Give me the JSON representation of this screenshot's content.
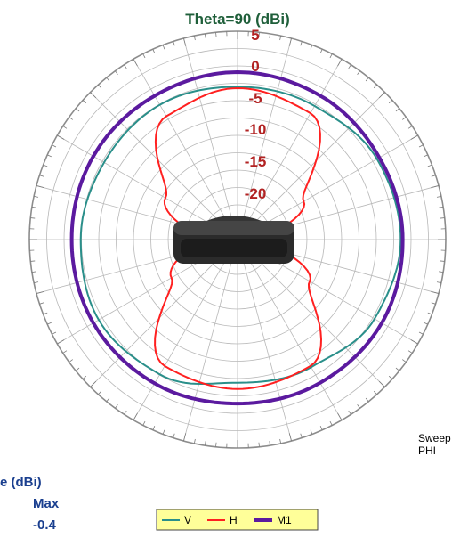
{
  "chart_data": {
    "type": "polar",
    "title": "Theta=90 (dBi)",
    "radial_ticks": [
      "5",
      "0",
      "-5",
      "-10",
      "-15",
      "-20"
    ],
    "rlim": [
      -25,
      5
    ],
    "grid": true,
    "sweep_label_line1": "Sweep",
    "sweep_label_line2": "PHI",
    "angle_step_deg": 15,
    "legend_position": "bottom-center",
    "series": [
      {
        "name": "V",
        "color": "#2a8f8a",
        "angles_deg": [
          0,
          30,
          60,
          90,
          120,
          150,
          180,
          210,
          240,
          270,
          300,
          330,
          360
        ],
        "values": [
          -3,
          -2.8,
          -1.8,
          -1.5,
          -2.2,
          -3.8,
          -4.4,
          -2.6,
          -1.9,
          -2.4,
          -2.8,
          -2.6,
          -3
        ]
      },
      {
        "name": "H",
        "color": "#ff2020",
        "angles_deg": [
          0,
          30,
          60,
          90,
          120,
          150,
          180,
          210,
          240,
          270,
          300,
          330,
          360
        ],
        "values": [
          -3.2,
          -4,
          -14,
          -23,
          -13,
          -4,
          -3.5,
          -4,
          -14,
          -20,
          -13,
          -4.5,
          -3.2
        ]
      },
      {
        "name": "M1",
        "color": "#5b1a9f",
        "angles_deg": [
          0,
          30,
          60,
          90,
          120,
          150,
          180,
          210,
          240,
          270,
          300,
          330,
          360
        ],
        "values": [
          -0.9,
          -1.1,
          -1.4,
          -1.2,
          -1.0,
          -1.2,
          -1.4,
          -1.1,
          -1.0,
          -1.1,
          -1.0,
          -1.1,
          -0.9
        ]
      }
    ]
  },
  "stats": {
    "partial_label": "e (dBi)",
    "max_label": "Max",
    "max_value": "-0.4"
  },
  "colors": {
    "grid": "#b8b8b8",
    "outer_ring": "#8c8c8c",
    "title": "#1f5f3a",
    "ring_labels": "#b22222",
    "stats": "#1a3f8f",
    "legend_background": "#ffff99",
    "legend_border": "#444444"
  },
  "device_image": "antenna-device"
}
